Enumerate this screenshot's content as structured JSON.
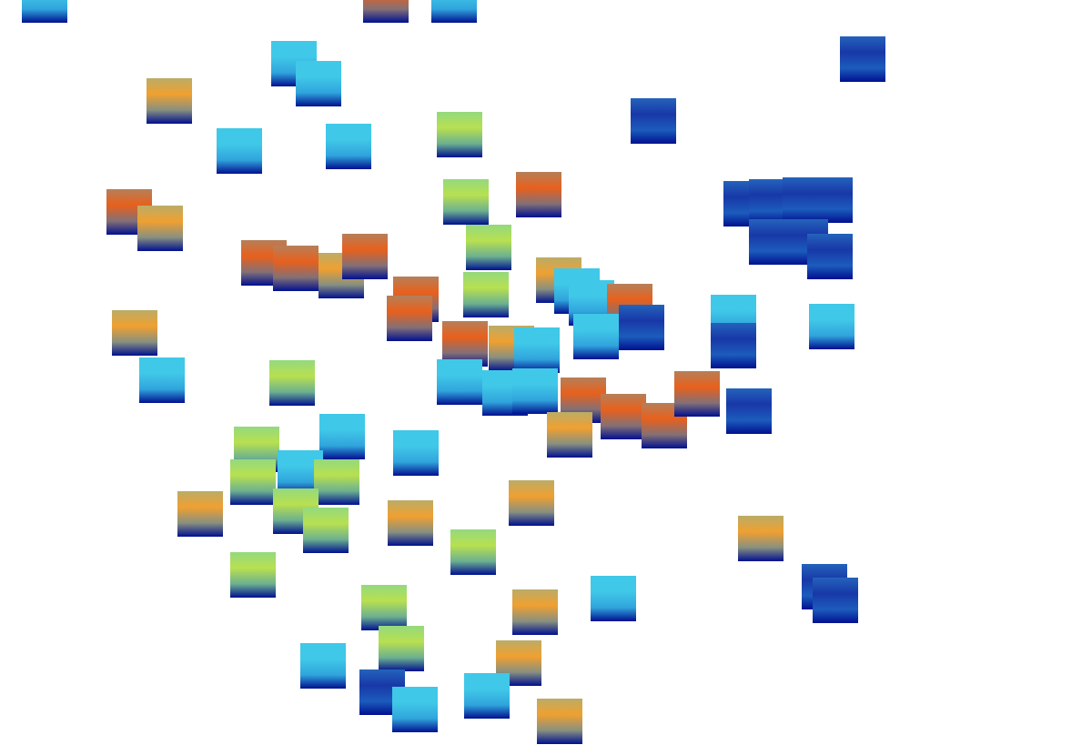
{
  "chart_data": {
    "type": "scatter",
    "marker": "square",
    "tick_labels": false,
    "xlim": [
      0,
      1200
    ],
    "ylim": [
      830,
      0
    ],
    "x": [
      49,
      424,
      499,
      948,
      323,
      350,
      186,
      263,
      383,
      505,
      718,
      142,
      176,
      512,
      592,
      820,
      848,
      885,
      912,
      848,
      885,
      912,
      290,
      325,
      375,
      401,
      457,
      450,
      537,
      534,
      614,
      634,
      650,
      692,
      705,
      655,
      806,
      806,
      914,
      148,
      178,
      321,
      511,
      562,
      590,
      505,
      555,
      588,
      641,
      626,
      685,
      730,
      766,
      823,
      282,
      376,
      278,
      330,
      370,
      325,
      358,
      457,
      220,
      451,
      584,
      520,
      836,
      278,
      422,
      441,
      588,
      674,
      906,
      918,
      355,
      420,
      456,
      570,
      535,
      615
    ],
    "values": [
      0,
      0,
      0,
      65,
      70,
      92,
      111,
      166,
      161,
      148,
      133,
      233,
      251,
      222,
      214,
      224,
      222,
      220,
      220,
      266,
      266,
      282,
      289,
      295,
      303,
      282,
      329,
      350,
      272,
      324,
      308,
      320,
      333,
      337,
      360,
      370,
      349,
      380,
      359,
      366,
      418,
      421,
      378,
      383,
      385,
      420,
      432,
      430,
      440,
      478,
      458,
      468,
      433,
      452,
      494,
      480,
      530,
      520,
      530,
      562,
      583,
      498,
      565,
      575,
      553,
      607,
      592,
      632,
      668,
      713,
      673,
      658,
      645,
      660,
      732,
      761,
      780,
      729,
      765,
      793
    ],
    "colors": [
      "#40c8e8",
      "#e8601c",
      "#40c8e8",
      "#1838a8",
      "#40c8e8",
      "#40c8e8",
      "#f0a030",
      "#40c8e8",
      "#40c8e8",
      "#b8e050",
      "#1838a8",
      "#e8601c",
      "#f0a030",
      "#b8e050",
      "#e8601c",
      "#1838a8",
      "#1838a8",
      "#1838a8",
      "#1838a8",
      "#1838a8",
      "#1838a8",
      "#1838a8",
      "#e8601c",
      "#e8601c",
      "#f0a030",
      "#e8601c",
      "#e8601c",
      "#e8601c",
      "#b8e050",
      "#b8e050",
      "#f0a030",
      "#40c8e8",
      "#40c8e8",
      "#e8601c",
      "#1838a8",
      "#40c8e8",
      "#40c8e8",
      "#1838a8",
      "#40c8e8",
      "#f0a030",
      "#40c8e8",
      "#b8e050",
      "#e8601c",
      "#f0a030",
      "#40c8e8",
      "#40c8e8",
      "#40c8e8",
      "#40c8e8",
      "#e8601c",
      "#f0a030",
      "#e8601c",
      "#e8601c",
      "#e8601c",
      "#1838a8",
      "#b8e050",
      "#40c8e8",
      "#b8e050",
      "#40c8e8",
      "#b8e050",
      "#b8e050",
      "#b8e050",
      "#40c8e8",
      "#f0a030",
      "#f0a030",
      "#f0a030",
      "#b8e050",
      "#f0a030",
      "#b8e050",
      "#b8e050",
      "#b8e050",
      "#f0a030",
      "#40c8e8",
      "#1838a8",
      "#1838a8",
      "#40c8e8",
      "#1838a8",
      "#40c8e8",
      "#f0a030",
      "#40c8e8",
      "#f0a030"
    ]
  }
}
